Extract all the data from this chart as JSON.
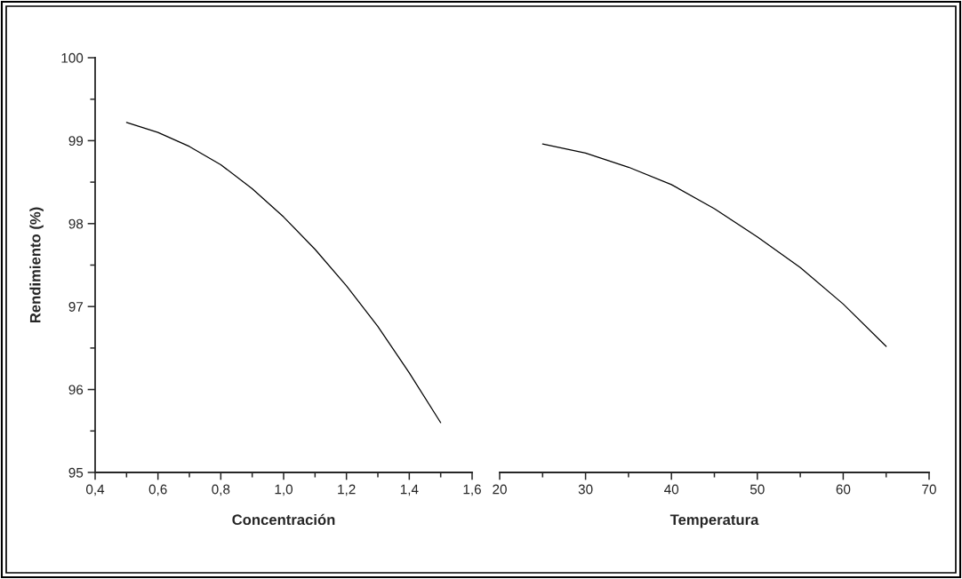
{
  "chart_data": [
    {
      "type": "line",
      "xlabel": "Concentración",
      "ylabel": "Rendimiento (%)",
      "x": [
        0.5,
        0.6,
        0.7,
        0.8,
        0.9,
        1.0,
        1.1,
        1.2,
        1.3,
        1.4,
        1.5
      ],
      "series": [
        {
          "color": "#000000",
          "values": [
            99.22,
            99.1,
            98.93,
            98.71,
            98.42,
            98.08,
            97.69,
            97.25,
            96.76,
            96.2,
            95.6
          ]
        }
      ],
      "xlim": [
        0.4,
        1.6
      ],
      "ylim": [
        95,
        100
      ],
      "xticks": [
        {
          "value": 0.4,
          "label": "0,4"
        },
        {
          "value": 0.5,
          "label": null
        },
        {
          "value": 0.6,
          "label": "0,6"
        },
        {
          "value": 0.7,
          "label": null
        },
        {
          "value": 0.8,
          "label": "0,8"
        },
        {
          "value": 0.9,
          "label": null
        },
        {
          "value": 1.0,
          "label": "1,0"
        },
        {
          "value": 1.1,
          "label": null
        },
        {
          "value": 1.2,
          "label": "1,2"
        },
        {
          "value": 1.3,
          "label": null
        },
        {
          "value": 1.4,
          "label": "1,4"
        },
        {
          "value": 1.5,
          "label": null
        },
        {
          "value": 1.6,
          "label": "1,6"
        }
      ],
      "yticks": [
        95,
        {
          "value": 95.5,
          "label": null
        },
        96,
        {
          "value": 96.5,
          "label": null
        },
        97,
        {
          "value": 97.5,
          "label": null
        },
        98,
        {
          "value": 98.5,
          "label": null
        },
        99,
        {
          "value": 99.5,
          "label": null
        },
        100
      ],
      "grid": false,
      "marker": "none",
      "line_style": "solid"
    },
    {
      "type": "line",
      "xlabel": "Temperatura",
      "x": [
        25,
        30,
        35,
        40,
        45,
        50,
        55,
        60,
        65
      ],
      "series": [
        {
          "color": "#000000",
          "values": [
            98.96,
            98.85,
            98.68,
            98.47,
            98.18,
            97.84,
            97.47,
            97.03,
            96.52
          ]
        }
      ],
      "xlim": [
        20,
        70
      ],
      "ylim": [
        95,
        100
      ],
      "xticks": [
        20,
        {
          "value": 25,
          "label": null
        },
        30,
        {
          "value": 35,
          "label": null
        },
        40,
        {
          "value": 45,
          "label": null
        },
        50,
        {
          "value": 55,
          "label": null
        },
        60,
        {
          "value": 65,
          "label": null
        },
        70
      ],
      "tick_labels": "x",
      "grid": false,
      "marker": "none",
      "line_style": "solid"
    }
  ]
}
